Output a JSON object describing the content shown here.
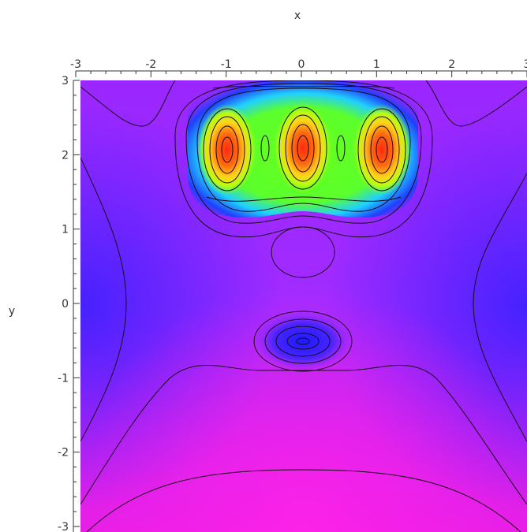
{
  "chart_data": {
    "type": "contour",
    "xlabel": "x",
    "ylabel": "y",
    "xlim": [
      -3,
      3
    ],
    "ylim": [
      -3,
      3
    ],
    "x_ticks": [
      "-3",
      "-2",
      "-1",
      "0",
      "1",
      "2",
      "3"
    ],
    "y_ticks": [
      "3",
      "2",
      "1",
      "0",
      "-1",
      "-2",
      "-3"
    ],
    "colormap": [
      "#7b2cff",
      "#a51cf0",
      "#d81ee6",
      "#ff2ee0",
      "#4a1cff",
      "#1f2cff",
      "#00b4ff",
      "#33ff5a",
      "#8cff1a",
      "#ffd21a",
      "#ff6a1a",
      "#ff2a1a"
    ],
    "peaks": [
      {
        "x": -1,
        "y": 2.1
      },
      {
        "x": 0,
        "y": 2.1
      },
      {
        "x": 1.05,
        "y": 2.1
      }
    ],
    "minimum": {
      "x": 0,
      "y": -0.5
    }
  }
}
